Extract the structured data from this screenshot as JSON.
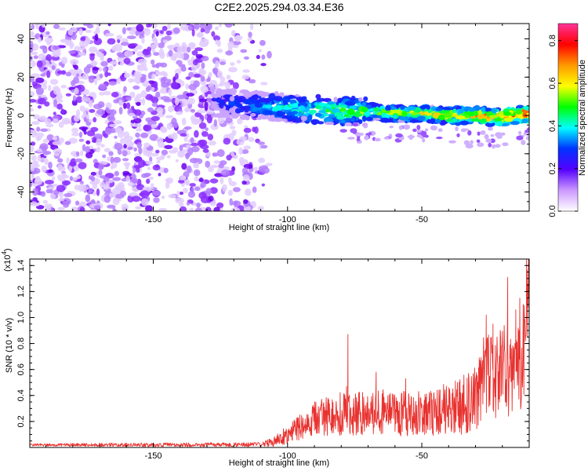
{
  "title": "C2E2.2025.294.03.34.E36",
  "chart_data": [
    {
      "type": "heatmap",
      "name": "spectrogram",
      "xlabel": "Height of straight line (km)",
      "ylabel": "Frequency (Hz)",
      "xlim": [
        -196,
        -10
      ],
      "ylim": [
        -50,
        48
      ],
      "xticks": [
        -150,
        -100,
        -50
      ],
      "xtick_labels": [
        "-150",
        "-100",
        "-50"
      ],
      "yticks": [
        -40,
        -20,
        0,
        20,
        40
      ],
      "ytick_labels": [
        "-40",
        "-20",
        "0",
        "20",
        "40"
      ],
      "signal_track": {
        "x": [
          -128,
          -120,
          -110,
          -100,
          -90,
          -80,
          -70,
          -60,
          -50,
          -40,
          -30,
          -20,
          -10
        ],
        "frequency": [
          7,
          6,
          5,
          4,
          3,
          2,
          2,
          1,
          1,
          0,
          0,
          -1,
          1
        ],
        "amplitude": [
          0.15,
          0.2,
          0.3,
          0.35,
          0.4,
          0.45,
          0.45,
          0.5,
          0.55,
          0.6,
          0.65,
          0.75,
          0.85
        ]
      },
      "noise_region": {
        "x_range": [
          -196,
          -108
        ],
        "amplitude": 0.1
      },
      "colorbar": {
        "label": "Normalized spectral amplitude",
        "range": [
          0,
          0.88
        ],
        "ticks": [
          0.0,
          0.2,
          0.4,
          0.6,
          0.8
        ],
        "tick_labels": [
          "0.0",
          "0.2",
          "0.4",
          "0.6",
          "0.8"
        ],
        "colors": [
          "#ffffff",
          "#cc99ff",
          "#5500ff",
          "#0033ff",
          "#00ffff",
          "#00ff00",
          "#ffff00",
          "#ff9900",
          "#ff0000",
          "#ff3399"
        ]
      }
    },
    {
      "type": "line",
      "name": "snr",
      "xlabel": "Height of straight line (km)",
      "ylabel": "SNR (10 * v/v)",
      "scale_label": "(x10",
      "scale_exp": "4",
      "xlim": [
        -196,
        -10
      ],
      "ylim": [
        0,
        1.45
      ],
      "xticks": [
        -150,
        -100,
        -50
      ],
      "xtick_labels": [
        "-150",
        "-100",
        "-50"
      ],
      "yticks": [
        0.2,
        0.4,
        0.6,
        0.8,
        1.0,
        1.2,
        1.4
      ],
      "ytick_labels": [
        "0.2",
        "0.4",
        "0.6",
        "0.8",
        "1.0",
        "1.2",
        "1.4"
      ],
      "color": "#e8322f",
      "series": {
        "x": [
          -196,
          -110,
          -105,
          -100,
          -95,
          -90,
          -85,
          -80,
          -78,
          -76,
          -72,
          -65,
          -60,
          -55,
          -50,
          -45,
          -40,
          -35,
          -30,
          -27,
          -25,
          -22,
          -19,
          -17,
          -15,
          -13,
          -12,
          -11,
          -10
        ],
        "mid": [
          0.02,
          0.02,
          0.05,
          0.1,
          0.16,
          0.22,
          0.24,
          0.26,
          0.32,
          0.25,
          0.27,
          0.28,
          0.27,
          0.26,
          0.26,
          0.28,
          0.3,
          0.32,
          0.4,
          0.55,
          0.58,
          0.56,
          0.62,
          0.5,
          0.55,
          0.6,
          0.8,
          1.0,
          1.3
        ],
        "amp": [
          0.01,
          0.02,
          0.05,
          0.07,
          0.1,
          0.13,
          0.15,
          0.17,
          0.2,
          0.16,
          0.18,
          0.18,
          0.18,
          0.18,
          0.17,
          0.19,
          0.2,
          0.22,
          0.28,
          0.3,
          0.32,
          0.35,
          0.4,
          0.35,
          0.35,
          0.38,
          0.4,
          0.35,
          0.2
        ]
      },
      "peaks": [
        {
          "x": -77.5,
          "y": 0.87
        },
        {
          "x": -67,
          "y": 0.58
        },
        {
          "x": -56,
          "y": 0.53
        },
        {
          "x": -26,
          "y": 1.02
        },
        {
          "x": -23.5,
          "y": 0.95
        },
        {
          "x": -18,
          "y": 1.31
        },
        {
          "x": -15,
          "y": 1.06
        },
        {
          "x": -13.5,
          "y": 1.15
        },
        {
          "x": -11,
          "y": 1.45
        }
      ]
    }
  ]
}
